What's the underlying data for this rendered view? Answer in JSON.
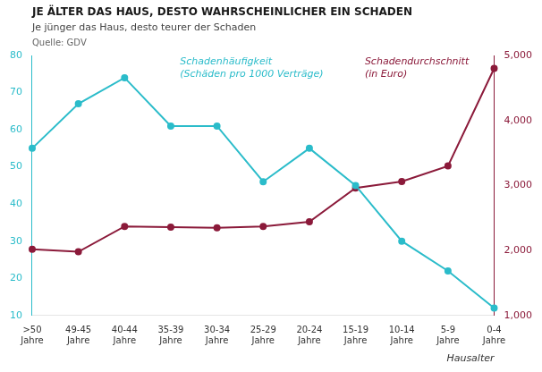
{
  "chart_data": {
    "type": "line",
    "title": "JE ÄLTER DAS HAUS, DESTO WAHRSCHEINLICHER EIN SCHADEN",
    "subtitle": "Je jünger das Haus, desto teurer der Schaden",
    "source": "Quelle: GDV",
    "xlabel": "Hausalter",
    "categories": [
      ">50\nJahre",
      "49-45\nJahre",
      "40-44\nJahre",
      "35-39\nJahre",
      "30-34\nJahre",
      "25-29\nJahre",
      "20-24\nJahre",
      "15-19\nJahre",
      "10-14\nJahre",
      "5-9\nJahre",
      "0-4\nJahre"
    ],
    "series": [
      {
        "name": "Schadenhäufigkeit",
        "color": "#2bbcca",
        "values": [
          55,
          67,
          74,
          61,
          61,
          46,
          55,
          45,
          30,
          22,
          12
        ]
      },
      {
        "name": "Schadendurchschnitt",
        "color": "#8b1a3a",
        "axis": "y2",
        "values": [
          2020,
          1980,
          2370,
          2360,
          2350,
          2370,
          2440,
          2960,
          3060,
          3300,
          4800
        ]
      }
    ],
    "annotations": [
      {
        "text": "(Schäden pro 1000 Verträge)",
        "color": "#2bbcca"
      },
      {
        "text": "(in Euro)",
        "color": "#8b1a3a"
      }
    ],
    "ylim": [
      10,
      80
    ],
    "yticks": [
      10,
      20,
      30,
      40,
      50,
      60,
      70,
      80
    ],
    "y2lim": [
      1000,
      5000
    ],
    "y2ticks": [
      1000,
      2000,
      3000,
      4000,
      5000
    ],
    "grid": false,
    "marker": "circle"
  }
}
